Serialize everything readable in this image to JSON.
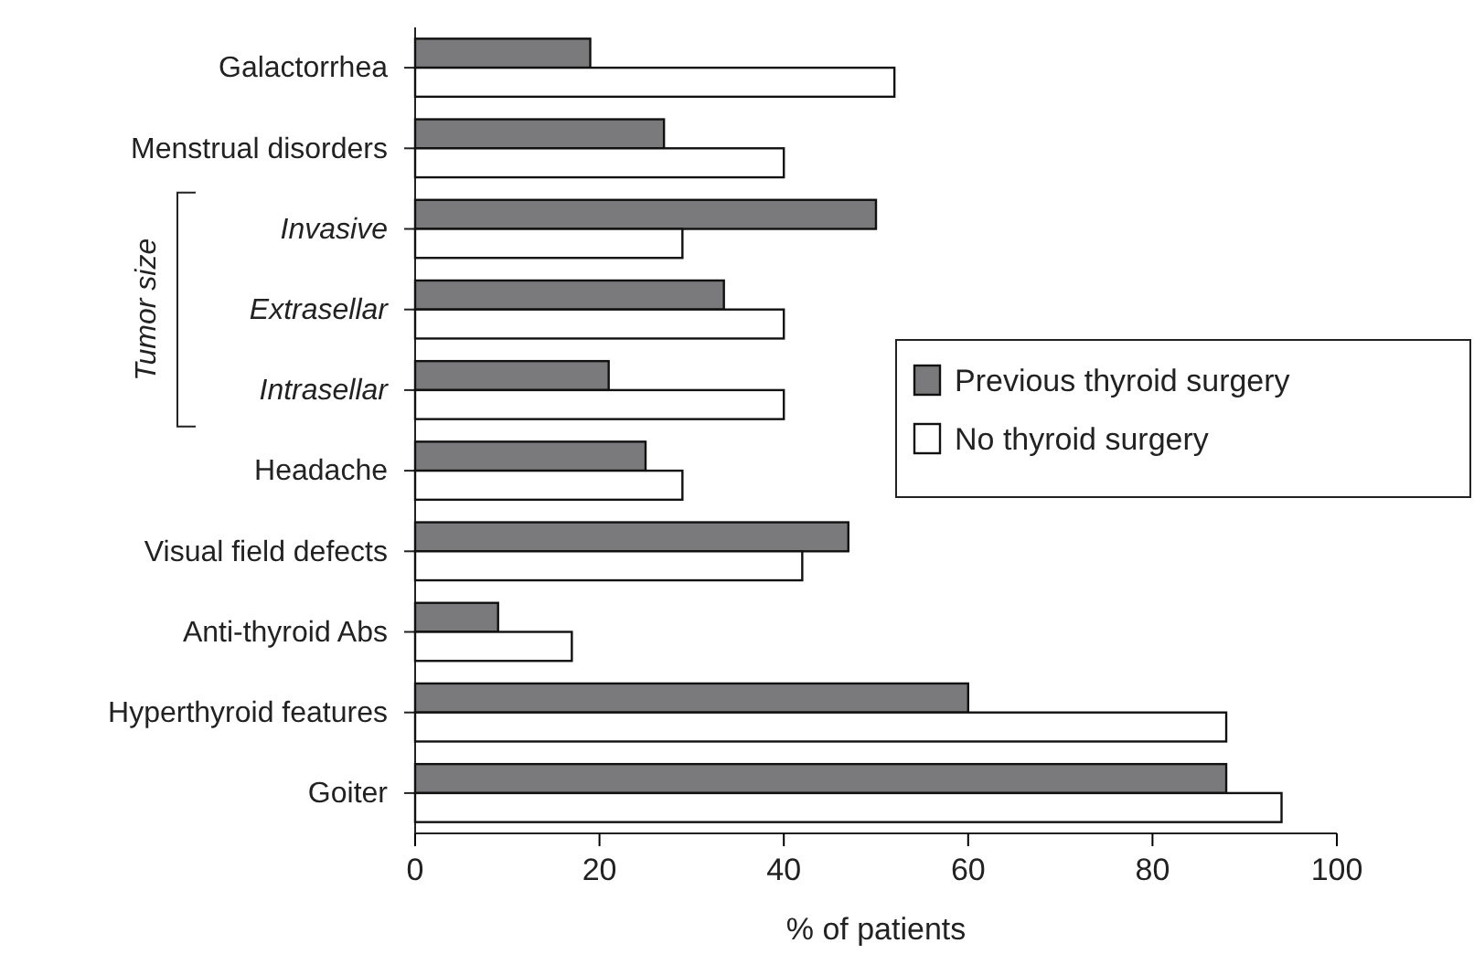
{
  "chart_data": {
    "type": "bar",
    "orientation": "horizontal",
    "xlabel": "% of patients",
    "categories": [
      "Galactorrhea",
      "Menstrual disorders",
      "Invasive",
      "Extrasellar",
      "Intrasellar",
      "Headache",
      "Visual field defects",
      "Anti-thyroid Abs",
      "Hyperthyroid features",
      "Goiter"
    ],
    "series": [
      {
        "name": "Previous thyroid surgery",
        "color": "#7a7a7c",
        "values": [
          19,
          27,
          50,
          33.5,
          21,
          25,
          47,
          9,
          60,
          88
        ]
      },
      {
        "name": "No thyroid surgery",
        "color": "#ffffff",
        "values": [
          52,
          40,
          29,
          40,
          40,
          29,
          42,
          17,
          88,
          94
        ]
      }
    ],
    "xlim": [
      0,
      100
    ],
    "xticks": [
      0,
      20,
      40,
      60,
      80,
      100
    ],
    "grid": false,
    "legend": "right",
    "annotations": [
      "Tumor size"
    ]
  }
}
